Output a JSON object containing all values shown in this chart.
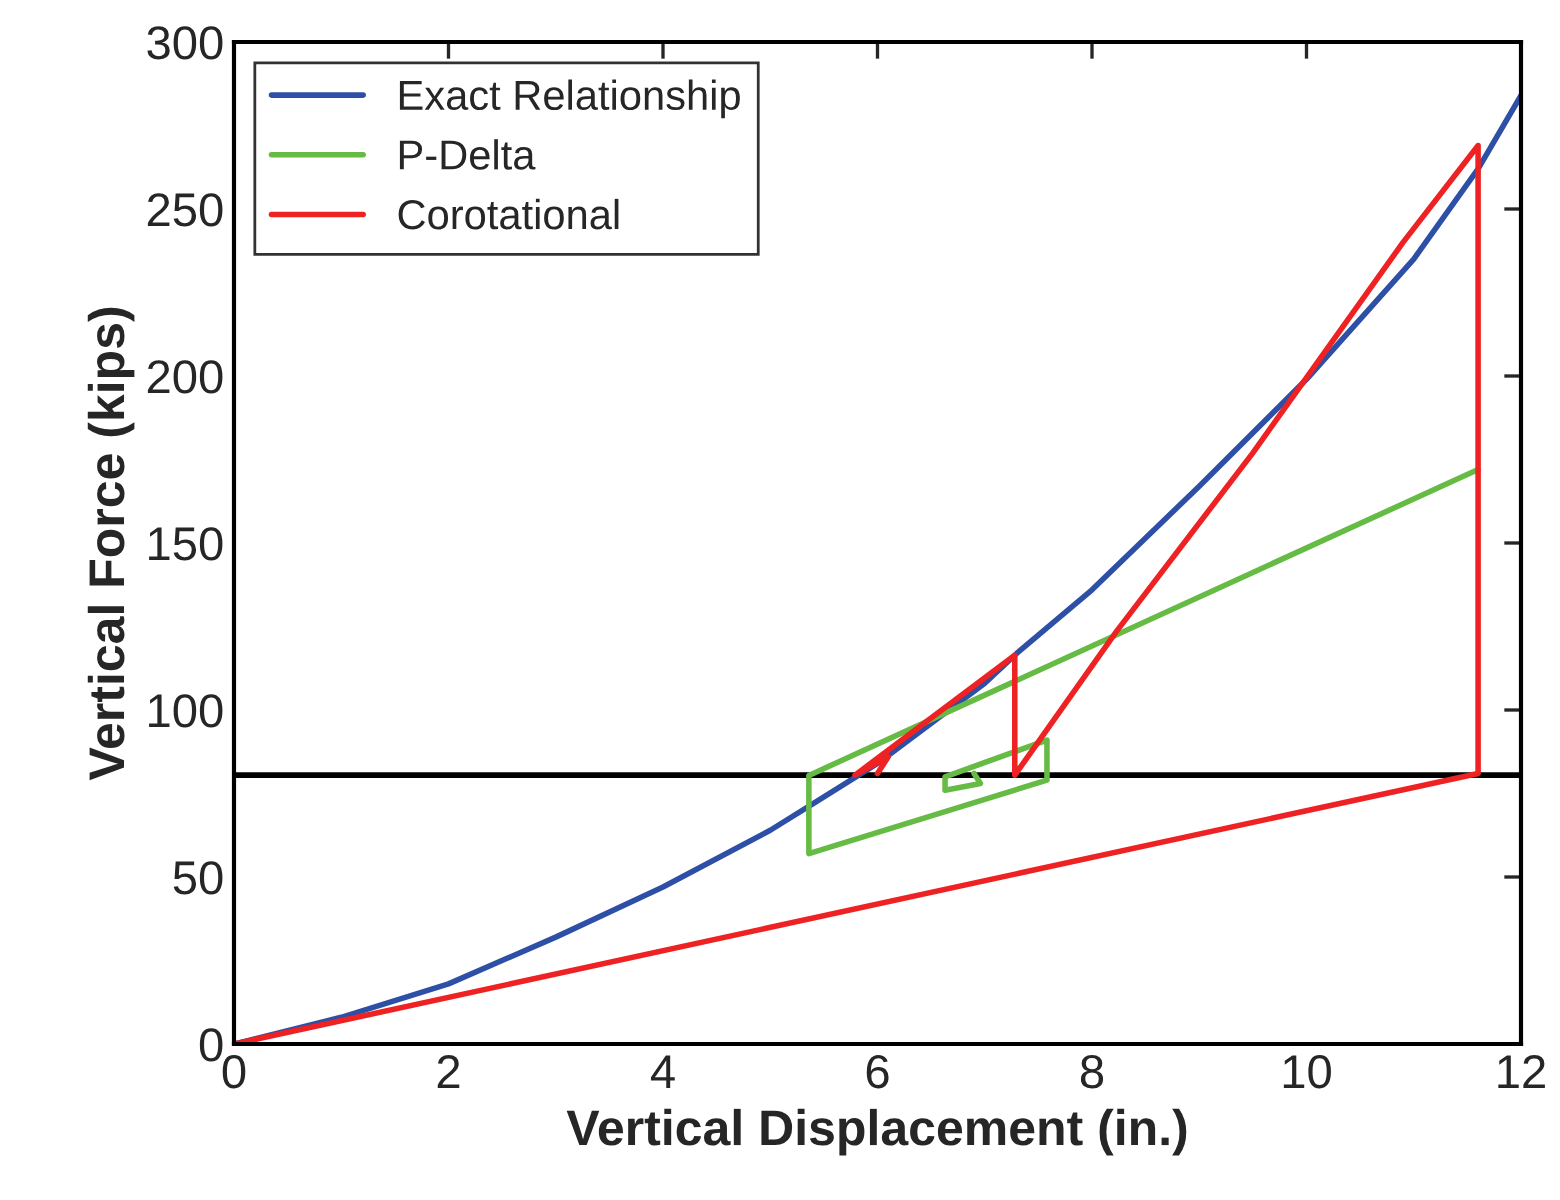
{
  "chart_data": {
    "type": "line",
    "xlabel": "Vertical Displacement (in.)",
    "ylabel": "Vertical Force (kips)",
    "xlim": [
      0,
      12
    ],
    "ylim": [
      0,
      300
    ],
    "xticks": [
      0,
      2,
      4,
      6,
      8,
      10,
      12
    ],
    "yticks": [
      0,
      50,
      100,
      150,
      200,
      250,
      300
    ],
    "grid": false,
    "legend": "top left",
    "line_style": "solid",
    "marker": "none",
    "series": [
      {
        "name": "Exact Relationship",
        "color": "#2e4fa6",
        "x": [
          0,
          1,
          2,
          3,
          4,
          5,
          5.4,
          6,
          7,
          7.3,
          8,
          9,
          10,
          11,
          11.6,
          12
        ],
        "values": [
          0,
          8,
          18,
          32,
          47,
          64,
          72,
          84,
          108,
          117,
          136,
          167,
          199,
          235,
          262,
          284
        ]
      },
      {
        "name": "P-Delta",
        "color": "#66bb44",
        "x": [
          11.6,
          5.36,
          5.36,
          7.58,
          7.58,
          6.63,
          6.63,
          6.96,
          6.9
        ],
        "values": [
          172,
          80.4,
          57,
          79,
          91,
          80,
          76,
          78,
          81
        ]
      },
      {
        "name": "Corotational",
        "color": "#ee2222",
        "x": [
          0,
          11.6,
          11.6,
          10.9,
          9.5,
          8.23,
          7.28,
          7.28,
          5.79,
          6.1,
          6.0
        ],
        "values": [
          0,
          81,
          269,
          240,
          177,
          123.6,
          80.5,
          116.4,
          80.5,
          86,
          81
        ]
      }
    ],
    "ref_lines": [
      {
        "axis": "y",
        "value": 80.5,
        "color": "#000000",
        "line_style": "solid"
      }
    ]
  }
}
